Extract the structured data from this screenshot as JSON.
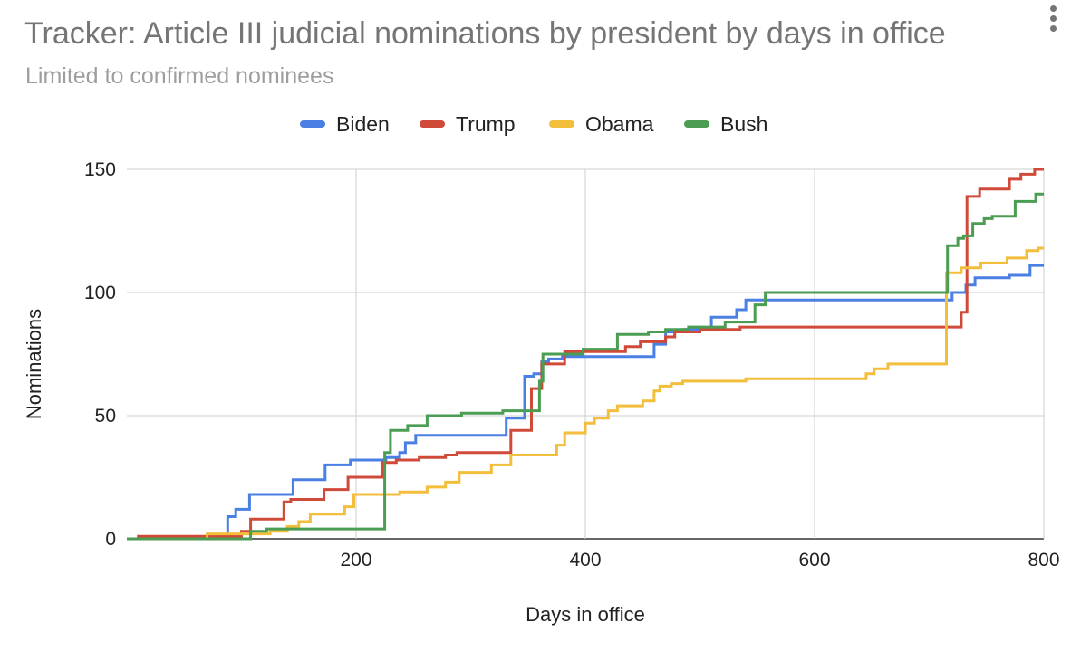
{
  "header": {
    "menu_icon": "more-vert-icon"
  },
  "chart_data": {
    "type": "line",
    "title": "Tracker: Article III judicial nominations by president by days in office",
    "subtitle": "Limited to confirmed nominees",
    "xlabel": "Days in office",
    "ylabel": "Nominations",
    "xlim": [
      0,
      800
    ],
    "ylim": [
      0,
      150
    ],
    "x_ticks": [
      200,
      400,
      600,
      800
    ],
    "y_ticks": [
      0,
      50,
      100,
      150
    ],
    "grid": true,
    "legend_position": "top",
    "series": [
      {
        "name": "Biden",
        "color": "#4a7fe4",
        "points": [
          [
            0,
            0
          ],
          [
            88,
            0
          ],
          [
            88,
            9
          ],
          [
            95,
            9
          ],
          [
            95,
            12
          ],
          [
            107,
            12
          ],
          [
            107,
            18
          ],
          [
            145,
            18
          ],
          [
            145,
            24
          ],
          [
            173,
            24
          ],
          [
            173,
            30
          ],
          [
            195,
            30
          ],
          [
            195,
            32
          ],
          [
            226,
            32
          ],
          [
            226,
            33
          ],
          [
            238,
            33
          ],
          [
            238,
            35
          ],
          [
            243,
            35
          ],
          [
            243,
            39
          ],
          [
            252,
            39
          ],
          [
            252,
            42
          ],
          [
            331,
            42
          ],
          [
            331,
            49
          ],
          [
            347,
            49
          ],
          [
            347,
            66
          ],
          [
            355,
            66
          ],
          [
            355,
            67
          ],
          [
            362,
            67
          ],
          [
            362,
            72
          ],
          [
            368,
            72
          ],
          [
            368,
            73
          ],
          [
            380,
            73
          ],
          [
            380,
            74
          ],
          [
            396,
            74
          ],
          [
            396,
            74
          ],
          [
            460,
            74
          ],
          [
            460,
            79
          ],
          [
            470,
            79
          ],
          [
            470,
            84
          ],
          [
            485,
            84
          ],
          [
            485,
            85
          ],
          [
            510,
            85
          ],
          [
            510,
            90
          ],
          [
            532,
            90
          ],
          [
            532,
            93
          ],
          [
            540,
            93
          ],
          [
            540,
            97
          ],
          [
            720,
            97
          ],
          [
            720,
            100
          ],
          [
            732,
            100
          ],
          [
            732,
            103
          ],
          [
            740,
            103
          ],
          [
            740,
            106
          ],
          [
            770,
            106
          ],
          [
            770,
            107
          ],
          [
            788,
            107
          ],
          [
            788,
            111
          ],
          [
            800,
            111
          ]
        ]
      },
      {
        "name": "Trump",
        "color": "#d04a3a",
        "points": [
          [
            0,
            0
          ],
          [
            10,
            0
          ],
          [
            10,
            1
          ],
          [
            100,
            1
          ],
          [
            100,
            3
          ],
          [
            108,
            3
          ],
          [
            108,
            8
          ],
          [
            137,
            8
          ],
          [
            137,
            15
          ],
          [
            143,
            15
          ],
          [
            143,
            16
          ],
          [
            172,
            16
          ],
          [
            172,
            20
          ],
          [
            193,
            20
          ],
          [
            193,
            25
          ],
          [
            223,
            25
          ],
          [
            223,
            31
          ],
          [
            235,
            31
          ],
          [
            235,
            32
          ],
          [
            255,
            32
          ],
          [
            255,
            33
          ],
          [
            278,
            33
          ],
          [
            278,
            34
          ],
          [
            288,
            34
          ],
          [
            288,
            35
          ],
          [
            335,
            35
          ],
          [
            335,
            44
          ],
          [
            353,
            44
          ],
          [
            353,
            61
          ],
          [
            362,
            61
          ],
          [
            362,
            71
          ],
          [
            382,
            71
          ],
          [
            382,
            76
          ],
          [
            435,
            76
          ],
          [
            435,
            78
          ],
          [
            448,
            78
          ],
          [
            448,
            80
          ],
          [
            470,
            80
          ],
          [
            470,
            82
          ],
          [
            478,
            82
          ],
          [
            478,
            84
          ],
          [
            500,
            84
          ],
          [
            500,
            85
          ],
          [
            535,
            85
          ],
          [
            535,
            86
          ],
          [
            728,
            86
          ],
          [
            728,
            92
          ],
          [
            733,
            92
          ],
          [
            733,
            139
          ],
          [
            744,
            139
          ],
          [
            744,
            142
          ],
          [
            770,
            142
          ],
          [
            770,
            146
          ],
          [
            780,
            146
          ],
          [
            780,
            148
          ],
          [
            792,
            148
          ],
          [
            792,
            150
          ],
          [
            800,
            150
          ]
        ]
      },
      {
        "name": "Obama",
        "color": "#f2be3b",
        "points": [
          [
            0,
            0
          ],
          [
            70,
            0
          ],
          [
            70,
            2
          ],
          [
            125,
            2
          ],
          [
            125,
            3
          ],
          [
            140,
            3
          ],
          [
            140,
            5
          ],
          [
            150,
            5
          ],
          [
            150,
            7
          ],
          [
            160,
            7
          ],
          [
            160,
            10
          ],
          [
            190,
            10
          ],
          [
            190,
            13
          ],
          [
            198,
            13
          ],
          [
            198,
            18
          ],
          [
            238,
            18
          ],
          [
            238,
            19
          ],
          [
            262,
            19
          ],
          [
            262,
            21
          ],
          [
            278,
            21
          ],
          [
            278,
            23
          ],
          [
            290,
            23
          ],
          [
            290,
            27
          ],
          [
            318,
            27
          ],
          [
            318,
            30
          ],
          [
            335,
            30
          ],
          [
            335,
            34
          ],
          [
            375,
            34
          ],
          [
            375,
            38
          ],
          [
            382,
            38
          ],
          [
            382,
            43
          ],
          [
            400,
            43
          ],
          [
            400,
            47
          ],
          [
            408,
            47
          ],
          [
            408,
            49
          ],
          [
            420,
            49
          ],
          [
            420,
            52
          ],
          [
            428,
            52
          ],
          [
            428,
            54
          ],
          [
            450,
            54
          ],
          [
            450,
            56
          ],
          [
            460,
            56
          ],
          [
            460,
            60
          ],
          [
            465,
            60
          ],
          [
            465,
            62
          ],
          [
            475,
            62
          ],
          [
            475,
            63
          ],
          [
            485,
            63
          ],
          [
            485,
            64
          ],
          [
            540,
            64
          ],
          [
            540,
            65
          ],
          [
            645,
            65
          ],
          [
            645,
            67
          ],
          [
            652,
            67
          ],
          [
            652,
            69
          ],
          [
            664,
            69
          ],
          [
            664,
            71
          ],
          [
            715,
            71
          ],
          [
            715,
            108
          ],
          [
            728,
            108
          ],
          [
            728,
            110
          ],
          [
            745,
            110
          ],
          [
            745,
            112
          ],
          [
            768,
            112
          ],
          [
            768,
            114
          ],
          [
            785,
            114
          ],
          [
            785,
            117
          ],
          [
            795,
            117
          ],
          [
            795,
            118
          ],
          [
            800,
            118
          ]
        ]
      },
      {
        "name": "Bush",
        "color": "#4a9d52",
        "points": [
          [
            0,
            0
          ],
          [
            108,
            0
          ],
          [
            108,
            3
          ],
          [
            122,
            3
          ],
          [
            122,
            4
          ],
          [
            225,
            4
          ],
          [
            225,
            35
          ],
          [
            230,
            35
          ],
          [
            230,
            44
          ],
          [
            245,
            44
          ],
          [
            245,
            46
          ],
          [
            262,
            46
          ],
          [
            262,
            50
          ],
          [
            292,
            50
          ],
          [
            292,
            51
          ],
          [
            328,
            51
          ],
          [
            328,
            52
          ],
          [
            360,
            52
          ],
          [
            360,
            64
          ],
          [
            363,
            64
          ],
          [
            363,
            75
          ],
          [
            398,
            75
          ],
          [
            398,
            77
          ],
          [
            428,
            77
          ],
          [
            428,
            83
          ],
          [
            455,
            83
          ],
          [
            455,
            84
          ],
          [
            470,
            84
          ],
          [
            470,
            85
          ],
          [
            490,
            85
          ],
          [
            490,
            86
          ],
          [
            522,
            86
          ],
          [
            522,
            88
          ],
          [
            548,
            88
          ],
          [
            548,
            95
          ],
          [
            557,
            95
          ],
          [
            557,
            100
          ],
          [
            716,
            100
          ],
          [
            716,
            119
          ],
          [
            725,
            119
          ],
          [
            725,
            122
          ],
          [
            730,
            122
          ],
          [
            730,
            123
          ],
          [
            738,
            123
          ],
          [
            738,
            128
          ],
          [
            748,
            128
          ],
          [
            748,
            130
          ],
          [
            755,
            130
          ],
          [
            755,
            131
          ],
          [
            775,
            131
          ],
          [
            775,
            137
          ],
          [
            793,
            137
          ],
          [
            793,
            140
          ],
          [
            800,
            140
          ]
        ]
      }
    ]
  }
}
